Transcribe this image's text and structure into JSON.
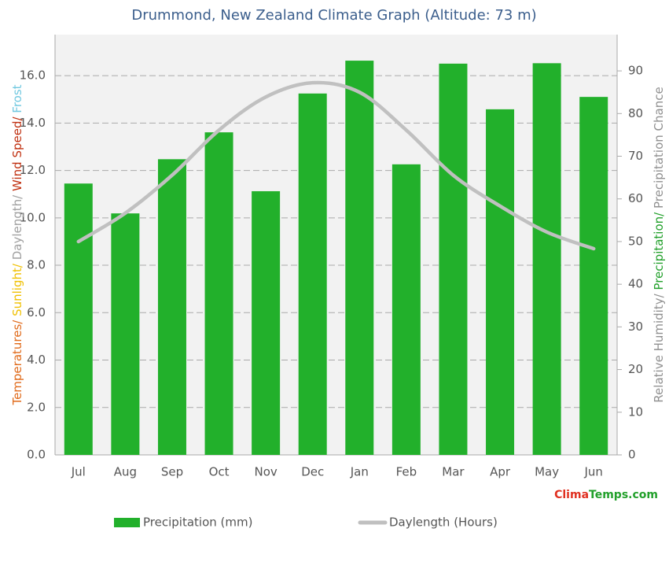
{
  "chart_data": {
    "type": "bar",
    "title": "Drummond, New Zealand Climate Graph (Altitude: 73 m)",
    "categories": [
      "Jul",
      "Aug",
      "Sep",
      "Oct",
      "Nov",
      "Dec",
      "Jan",
      "Feb",
      "Mar",
      "Apr",
      "May",
      "Jun"
    ],
    "series": [
      {
        "name": "Precipitation (mm)",
        "type": "bar",
        "axis": "y2",
        "color": "#22b02b",
        "values": [
          63.6,
          56.6,
          69.3,
          75.6,
          61.8,
          84.7,
          92.4,
          68.1,
          91.7,
          81.0,
          91.8,
          83.9
        ]
      },
      {
        "name": "Daylength (Hours)",
        "type": "line",
        "color": "#c0c0c0",
        "values": [
          9.0,
          10.2,
          11.8,
          13.7,
          15.1,
          15.7,
          15.3,
          13.7,
          11.8,
          10.5,
          9.4,
          8.7
        ]
      }
    ],
    "ylim": [
      0,
      17.73
    ],
    "yticks": [
      {
        "value": 0,
        "label": "0.0"
      },
      {
        "value": 2,
        "label": "2.0"
      },
      {
        "value": 4,
        "label": "4.0"
      },
      {
        "value": 6,
        "label": "6.0"
      },
      {
        "value": 8,
        "label": "8.0"
      },
      {
        "value": 10,
        "label": "10.0"
      },
      {
        "value": 12,
        "label": "12.0"
      },
      {
        "value": 14,
        "label": "14.0"
      },
      {
        "value": 16,
        "label": "16.0"
      }
    ],
    "y2lim": [
      0,
      98.5
    ],
    "y2ticks": [
      0,
      10,
      20,
      30,
      40,
      50,
      60,
      70,
      80,
      90
    ],
    "ylabel_parts": [
      {
        "text": "Temperatures/ ",
        "color": "#e06a1a"
      },
      {
        "text": "Sunlight/ ",
        "color": "#f0c000"
      },
      {
        "text": "Daylength/ ",
        "color": "#a0a0a0"
      },
      {
        "text": "Wind Speed/ ",
        "color": "#c03010"
      },
      {
        "text": "Frost",
        "color": "#70c8e0"
      }
    ],
    "y2label_parts": [
      {
        "text": "Relative Humidity/ ",
        "color": "#909090"
      },
      {
        "text": "Precipitation/ ",
        "color": "#22a02b"
      },
      {
        "text": "Precipitation Chance",
        "color": "#909090"
      }
    ],
    "watermark_parts": [
      {
        "text": "Clima",
        "color": "#e03020"
      },
      {
        "text": "Temps",
        "color": "#22a02b"
      },
      {
        "text": ".com",
        "color": "#22a02b"
      }
    ],
    "grid": true
  }
}
